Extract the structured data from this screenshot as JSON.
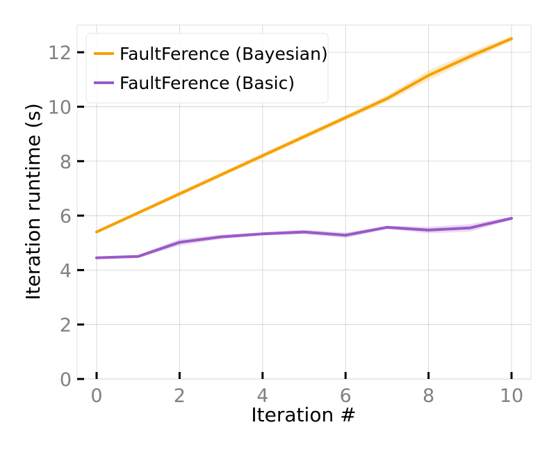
{
  "chart_data": {
    "type": "line",
    "title": "",
    "xlabel": "Iteration #",
    "ylabel": "Iteration runtime (s)",
    "xlim": [
      -0.5,
      10.5
    ],
    "ylim": [
      0,
      13
    ],
    "xticks": [
      0,
      2,
      4,
      6,
      8,
      10
    ],
    "yticks": [
      0,
      2,
      4,
      6,
      8,
      10,
      12
    ],
    "grid": true,
    "legend_position": "top-left",
    "series": [
      {
        "name": "FaultFerence (Bayesian)",
        "color": "#f5a000",
        "x": [
          0,
          1,
          2,
          3,
          4,
          5,
          6,
          7,
          8,
          9,
          10
        ],
        "values": [
          5.4,
          6.1,
          6.8,
          7.5,
          8.2,
          8.9,
          9.6,
          10.3,
          11.15,
          11.85,
          12.5
        ],
        "band": [
          0.05,
          0.07,
          0.08,
          0.08,
          0.09,
          0.1,
          0.1,
          0.12,
          0.18,
          0.15,
          0.1
        ]
      },
      {
        "name": "FaultFerence (Basic)",
        "color": "#9b59c8",
        "x": [
          0,
          1,
          2,
          3,
          4,
          5,
          6,
          7,
          8,
          9,
          10
        ],
        "values": [
          4.45,
          4.5,
          5.02,
          5.22,
          5.33,
          5.4,
          5.28,
          5.57,
          5.47,
          5.55,
          5.9
        ],
        "band": [
          0.04,
          0.05,
          0.12,
          0.08,
          0.06,
          0.08,
          0.1,
          0.06,
          0.12,
          0.14,
          0.05
        ]
      }
    ]
  }
}
